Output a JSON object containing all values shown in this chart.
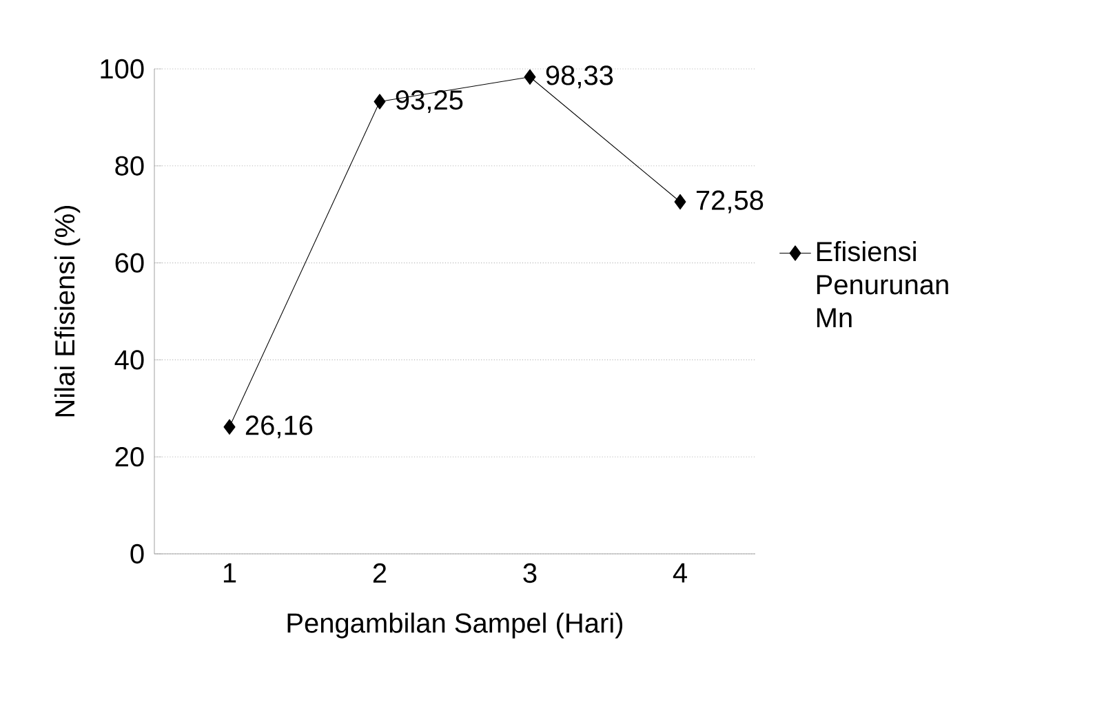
{
  "chart_data": {
    "type": "line",
    "xlabel": "Pengambilan Sampel (Hari)",
    "ylabel": "Nilai Efisiensi (%)",
    "categories": [
      "1",
      "2",
      "3",
      "4"
    ],
    "series": [
      {
        "name": "Efisiensi Penurunan Mn",
        "color": "#000000",
        "values": [
          26.16,
          93.25,
          98.33,
          72.58
        ],
        "value_labels": [
          "26,16",
          "93,25",
          "98,33",
          "72,58"
        ]
      }
    ],
    "ylim": [
      0,
      100
    ],
    "yticks": [
      0,
      20,
      40,
      60,
      80,
      100
    ],
    "grid": "y",
    "legend": "right",
    "marker": "diamond",
    "line_style": "solid"
  }
}
